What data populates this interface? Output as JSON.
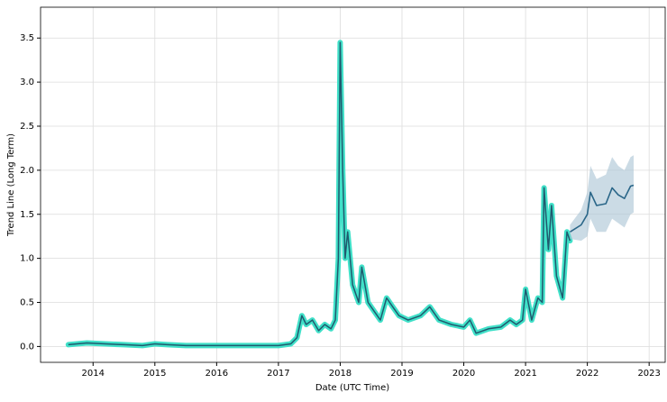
{
  "chart_data": {
    "type": "line",
    "x_label": "Date (UTC Time)",
    "y_label": "Trend Line (Long Term)",
    "xlim": [
      2013.15,
      2023.26
    ],
    "xticks": [
      2014,
      2015,
      2016,
      2017,
      2018,
      2019,
      2020,
      2021,
      2022,
      2023
    ],
    "ylim": [
      -0.18,
      3.85
    ],
    "yticks": [
      {
        "value": 0,
        "label": "0.0"
      },
      0.5,
      {
        "value": 1,
        "label": "1.0"
      },
      1.5,
      {
        "value": 2,
        "label": "2.0"
      },
      2.5,
      {
        "value": 3,
        "label": "3.0"
      },
      3.5
    ],
    "grid": true,
    "series": [
      {
        "color": "#40e0c8",
        "outline_color": "#1f5a6e",
        "x": [
          2013.6,
          2013.9,
          2014.2,
          2014.5,
          2014.8,
          2015.0,
          2015.2,
          2015.5,
          2016.0,
          2016.5,
          2017.0,
          2017.2,
          2017.3,
          2017.38,
          2017.45,
          2017.55,
          2017.65,
          2017.75,
          2017.85,
          2017.92,
          2017.97,
          2018.0,
          2018.04,
          2018.08,
          2018.12,
          2018.2,
          2018.3,
          2018.35,
          2018.45,
          2018.55,
          2018.65,
          2018.75,
          2018.85,
          2018.95,
          2019.1,
          2019.3,
          2019.45,
          2019.6,
          2019.8,
          2020.0,
          2020.1,
          2020.2,
          2020.4,
          2020.6,
          2020.75,
          2020.85,
          2020.95,
          2021.0,
          2021.1,
          2021.2,
          2021.27,
          2021.3,
          2021.37,
          2021.42,
          2021.5,
          2021.6,
          2021.67,
          2021.72
        ],
        "values": [
          0.02,
          0.04,
          0.03,
          0.02,
          0.01,
          0.03,
          0.02,
          0.01,
          0.01,
          0.01,
          0.01,
          0.03,
          0.1,
          0.35,
          0.25,
          0.3,
          0.18,
          0.25,
          0.2,
          0.3,
          1.0,
          3.45,
          2.0,
          1.0,
          1.3,
          0.7,
          0.5,
          0.9,
          0.5,
          0.4,
          0.3,
          0.55,
          0.45,
          0.35,
          0.3,
          0.35,
          0.45,
          0.3,
          0.25,
          0.22,
          0.3,
          0.15,
          0.2,
          0.22,
          0.3,
          0.25,
          0.3,
          0.65,
          0.3,
          0.55,
          0.5,
          1.8,
          1.1,
          1.6,
          0.8,
          0.55,
          1.3,
          1.2
        ]
      },
      {
        "color": "#2a6688",
        "band_color": "#a9c3d3",
        "x": [
          2021.72,
          2021.9,
          2022.0,
          2022.05,
          2022.15,
          2022.3,
          2022.4,
          2022.5,
          2022.6,
          2022.7,
          2022.75
        ],
        "values": [
          1.3,
          1.38,
          1.5,
          1.75,
          1.6,
          1.62,
          1.8,
          1.72,
          1.68,
          1.82,
          1.83
        ],
        "upper": [
          1.38,
          1.55,
          1.75,
          2.05,
          1.9,
          1.95,
          2.15,
          2.05,
          2.0,
          2.15,
          2.17
        ],
        "lower": [
          1.22,
          1.2,
          1.25,
          1.45,
          1.3,
          1.3,
          1.45,
          1.4,
          1.35,
          1.5,
          1.52
        ]
      }
    ]
  }
}
